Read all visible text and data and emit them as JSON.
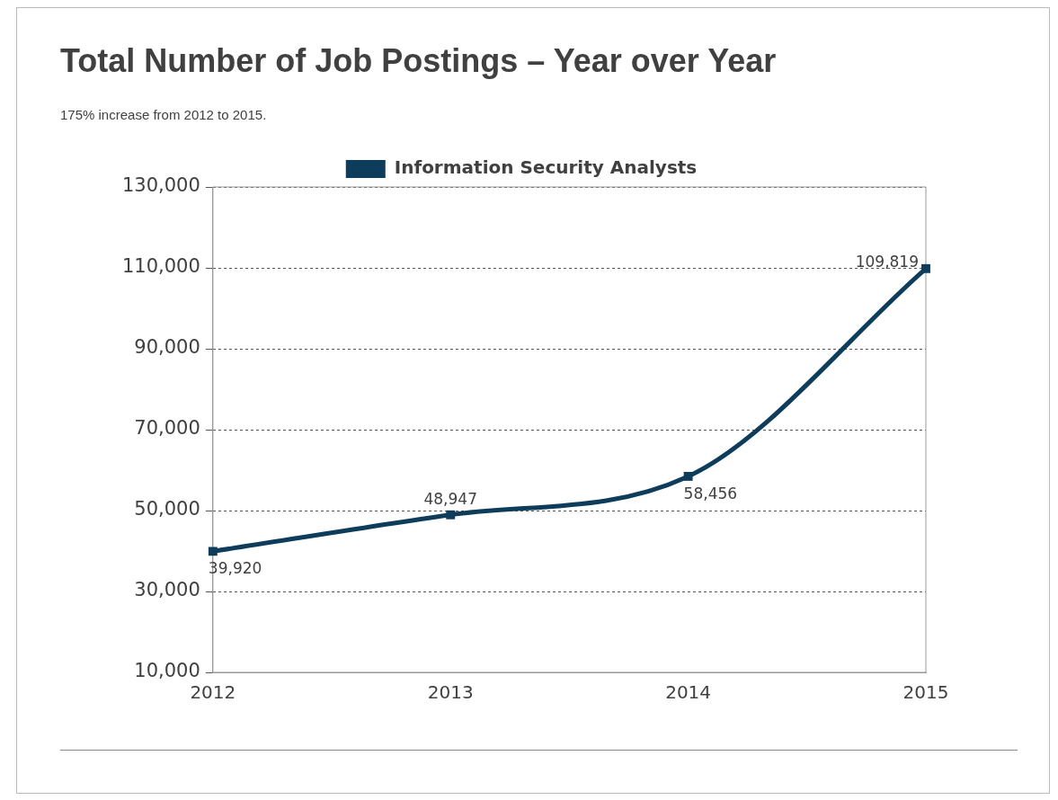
{
  "chart_data": {
    "type": "line",
    "title": "Total Number of Job Postings – Year over Year",
    "subtitle": "175% increase from 2012 to 2015.",
    "categories": [
      "2012",
      "2013",
      "2014",
      "2015"
    ],
    "series": [
      {
        "name": "Information Security Analysts",
        "color": "#0e3d5c",
        "values": [
          39920,
          48947,
          58456,
          109819
        ],
        "value_labels": [
          "39,920",
          "48,947",
          "58,456",
          "109,819"
        ]
      }
    ],
    "ylim": [
      10000,
      130000
    ],
    "yticks": [
      {
        "value": 10000,
        "label": "10,000"
      },
      {
        "value": 30000,
        "label": "30,000"
      },
      {
        "value": 50000,
        "label": "50,000"
      },
      {
        "value": 70000,
        "label": "70,000"
      },
      {
        "value": 90000,
        "label": "90,000"
      },
      {
        "value": 110000,
        "label": "110,000"
      },
      {
        "value": 130000,
        "label": "130,000"
      }
    ],
    "grid": "y",
    "legend": "top",
    "marker": "square",
    "line_style": "solid"
  }
}
